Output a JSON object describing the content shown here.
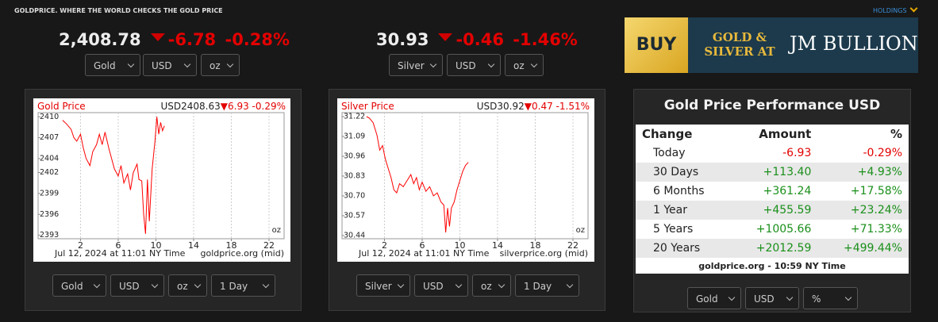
{
  "header": {
    "site": "GOLDPRICE. WHERE THE WORLD CHECKS THE GOLD PRICE",
    "holdings": "HOLDINGS"
  },
  "gold_quote": {
    "price": "2,408.78",
    "change": "-6.78",
    "percent": "-0.28%",
    "selects": [
      "Gold",
      "USD",
      "oz"
    ]
  },
  "silver_quote": {
    "price": "30.93",
    "change": "-0.46",
    "percent": "-1.46%",
    "selects": [
      "Silver",
      "USD",
      "oz"
    ]
  },
  "ad": {
    "button": "BUY",
    "line1": "GOLD &",
    "line2": "SILVER AT",
    "brand": "JM BULLION"
  },
  "gold_chart": {
    "type": "line",
    "title": "Gold Price",
    "price": "USD2408.63",
    "change": "6.93",
    "percent": "-0.29%",
    "color": "#ff0000",
    "unit": "oz",
    "date": "Jul 12, 2024 at 11:01 NY Time",
    "source": "goldprice.org (mid)",
    "xlim": [
      -2.5,
      23.6
    ],
    "xticks": [
      2,
      6,
      10,
      14,
      18,
      22
    ],
    "ylim": [
      2392.5,
      2410.6
    ],
    "yticks": [
      2393,
      2396,
      2399,
      2402,
      2404,
      2407,
      2410
    ],
    "x": [
      0.1,
      0.5,
      1.0,
      1.3,
      1.6,
      2.0,
      2.3,
      2.6,
      3.0,
      3.3,
      3.7,
      4.0,
      4.3,
      4.6,
      5.0,
      5.3,
      5.6,
      6.0,
      6.3,
      6.6,
      7.0,
      7.3,
      7.6,
      8.0,
      8.2,
      8.5,
      8.7,
      8.9,
      9.1,
      9.3,
      9.6,
      9.9,
      10.1,
      10.3,
      10.5,
      10.7,
      10.9
    ],
    "values": [
      2409.5,
      2409.0,
      2408.2,
      2407.0,
      2406.5,
      2407.5,
      2405.5,
      2404.0,
      2403.0,
      2405.0,
      2406.0,
      2407.5,
      2406.0,
      2407.8,
      2405.5,
      2404.0,
      2402.5,
      2401.5,
      2403.0,
      2400.5,
      2401.8,
      2399.5,
      2402.0,
      2403.2,
      2401.0,
      2400.8,
      2396.0,
      2393.2,
      2401.0,
      2395.0,
      2402.5,
      2406.5,
      2410.0,
      2407.5,
      2409.2,
      2408.0,
      2408.7
    ],
    "selects": [
      "Gold",
      "USD",
      "oz",
      "1 Day"
    ]
  },
  "silver_chart": {
    "type": "line",
    "title": "Silver Price",
    "price": "USD30.92",
    "change": "0.47",
    "percent": "-1.51%",
    "color": "#ff0000",
    "unit": "oz",
    "date": "Jul 12, 2024 at 11:01 NY Time",
    "source": "silverprice.org (mid)",
    "xlim": [
      -2.5,
      23.6
    ],
    "xticks": [
      2,
      6,
      10,
      14,
      18,
      22
    ],
    "ylim": [
      30.419,
      31.246
    ],
    "yticks": [
      30.44,
      30.57,
      {
        "value": 30.7,
        "label": "30.70"
      },
      30.83,
      30.96,
      31.09,
      31.22
    ],
    "x": [
      0.1,
      0.4,
      0.8,
      1.2,
      1.5,
      1.8,
      2.1,
      2.4,
      2.7,
      3.0,
      3.3,
      3.6,
      4.0,
      4.4,
      4.8,
      5.1,
      5.4,
      5.7,
      6.0,
      6.4,
      6.8,
      7.2,
      7.6,
      8.0,
      8.3,
      8.5,
      8.7,
      8.9,
      9.1,
      9.4,
      9.7,
      10.0,
      10.3,
      10.6,
      10.9
    ],
    "values": [
      31.22,
      31.21,
      31.18,
      31.1,
      31.0,
      31.03,
      30.94,
      30.88,
      30.82,
      30.74,
      30.72,
      30.78,
      30.76,
      30.8,
      30.84,
      30.78,
      30.82,
      30.74,
      30.79,
      30.73,
      30.76,
      30.7,
      30.72,
      30.66,
      30.64,
      30.46,
      30.62,
      30.5,
      30.62,
      30.66,
      30.74,
      30.8,
      30.86,
      30.9,
      30.92
    ],
    "selects": [
      "Silver",
      "USD",
      "oz",
      "1 Day"
    ]
  },
  "performance": {
    "title": "Gold Price Performance USD",
    "headers": [
      "Change",
      "Amount",
      "%"
    ],
    "rows": [
      [
        "Today",
        "-6.93",
        "-0.29%"
      ],
      [
        "30 Days",
        "+113.40",
        "+4.93%"
      ],
      [
        "6 Months",
        "+361.24",
        "+17.58%"
      ],
      [
        "1 Year",
        "+455.59",
        "+23.24%"
      ],
      [
        "5 Years",
        "+1005.66",
        "+71.33%"
      ],
      [
        "20 Years",
        "+2012.59",
        "+499.44%"
      ]
    ],
    "footer": "goldprice.org - 10:59 NY Time",
    "selects": [
      "Gold",
      "USD",
      "%"
    ]
  }
}
